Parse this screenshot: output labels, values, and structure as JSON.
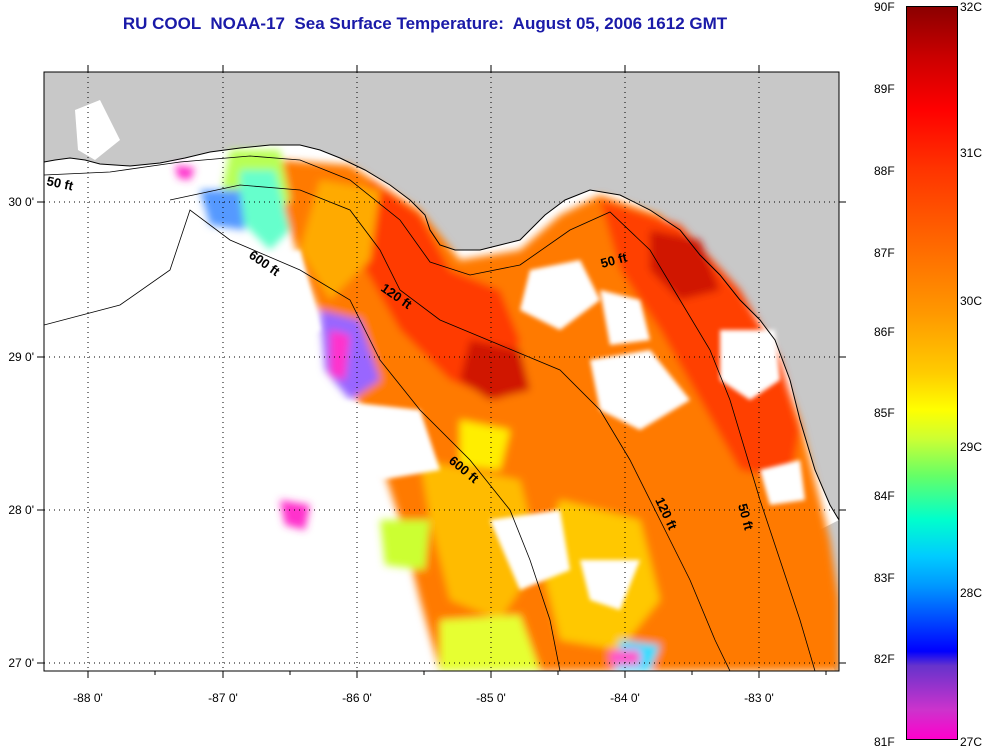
{
  "title": "RU COOL  NOAA-17  Sea Surface Temperature:  August 05, 2006 1612 GMT",
  "map": {
    "lon_labels": [
      "-88 0'",
      "-87 0'",
      "-86 0'",
      "-85 0'",
      "-84 0'",
      "-83 0'"
    ],
    "lat_labels": [
      "30 0'",
      "29 0'",
      "28 0'",
      "27 0'"
    ],
    "contour_labels": [
      "50 ft",
      "600 ft",
      "120 ft",
      "50 ft",
      "600 ft",
      "120 ft",
      "50 ft"
    ],
    "colors": {
      "land": "#c8c8c8",
      "cloud": "#ffffff",
      "grid": "#000000"
    }
  },
  "colorbar": {
    "fahrenheit_labels": [
      "90F",
      "89F",
      "88F",
      "87F",
      "86F",
      "85F",
      "84F",
      "83F",
      "82F",
      "81F"
    ],
    "celsius_labels": [
      "32C",
      "31C",
      "30C",
      "29C",
      "28C",
      "27C"
    ]
  }
}
